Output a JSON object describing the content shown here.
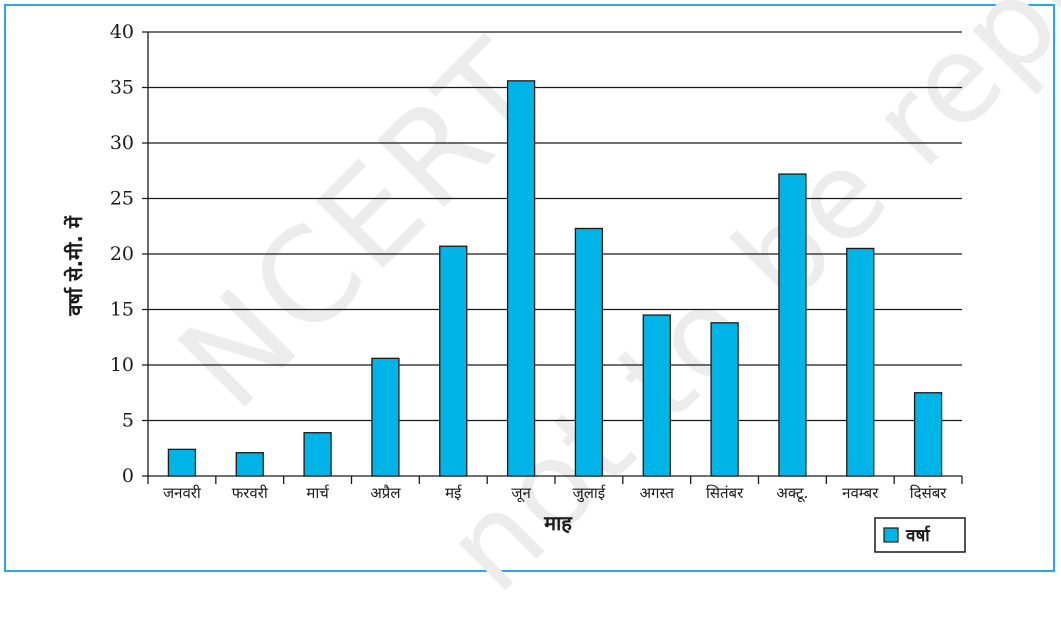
{
  "watermark": {
    "line1": "NCERT",
    "line2": "not to be republished"
  },
  "chart_data": {
    "type": "bar",
    "title": "",
    "xlabel": "माह",
    "ylabel": "वर्षा से.मी. में",
    "ylim": [
      0,
      40
    ],
    "yticks": [
      0,
      5,
      10,
      15,
      20,
      25,
      30,
      35,
      40
    ],
    "grid": true,
    "legend_position": "bottom-right",
    "bar_color": "#00b4e8",
    "categories": [
      "जनवरी",
      "फरवरी",
      "मार्च",
      "अप्रैल",
      "मई",
      "जून",
      "जुलाई",
      "अगस्त",
      "सितंबर",
      "अक्टू.",
      "नवम्बर",
      "दिसंबर"
    ],
    "series": [
      {
        "name": "वर्षा",
        "values": [
          2.4,
          2.1,
          3.9,
          10.6,
          20.7,
          35.6,
          22.3,
          14.5,
          13.8,
          27.2,
          20.5,
          7.5
        ]
      }
    ]
  }
}
